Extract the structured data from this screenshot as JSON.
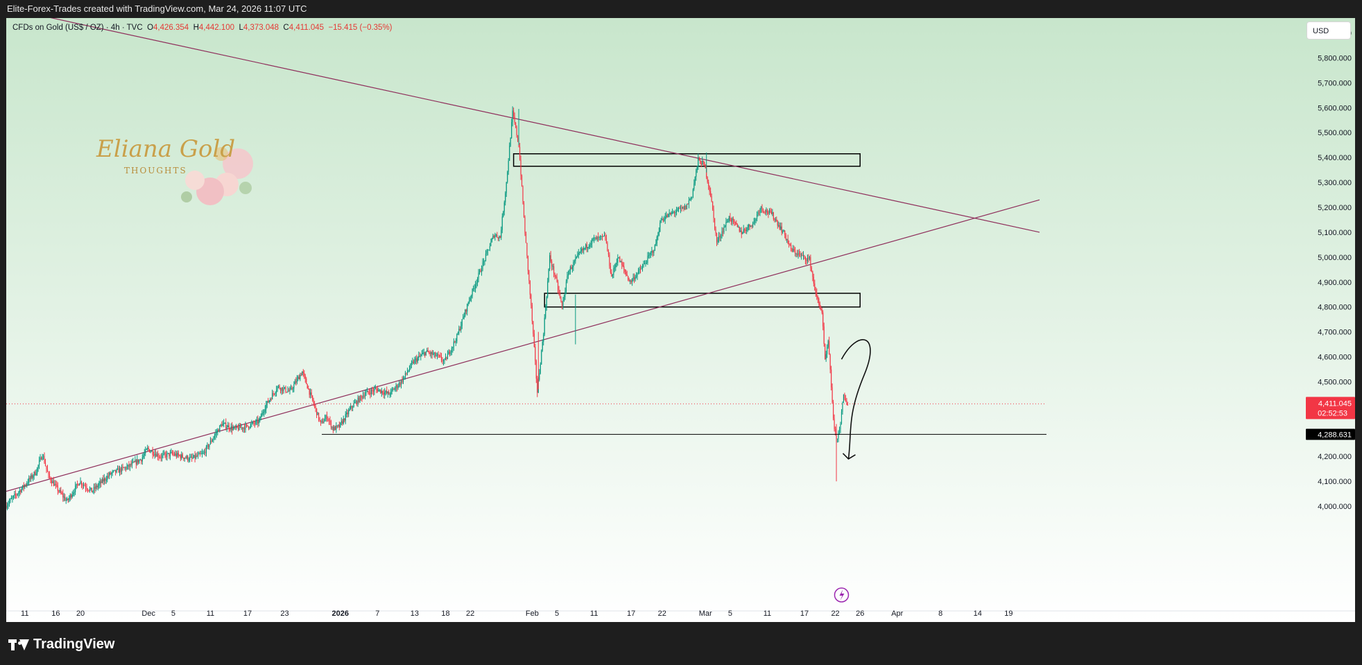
{
  "header": {
    "attribution": "Elite-Forex-Trades created with TradingView.com, Mar 24, 2026 11:07 UTC"
  },
  "legend": {
    "symbol": "CFDs on Gold (US$ / OZ) · 4h · TVC",
    "o_label": "O",
    "open": "4,426.354",
    "h_label": "H",
    "high": "4,442.100",
    "l_label": "L",
    "low": "4,373.048",
    "c_label": "C",
    "close": "4,411.045",
    "change": "−15.415 (−0.35%)"
  },
  "currency_button": "USD",
  "logo": {
    "text": "Eliana Gold",
    "subtext": "THOUGHTS",
    "icon": "rose-bouquet-icon"
  },
  "footer": {
    "brand": "TradingView",
    "icon": "tradingview-logo-icon"
  },
  "colors": {
    "up": "#089981",
    "down": "#f23645",
    "trendline": "#8e2d5a",
    "background_top": "#c8e6cc",
    "price_tag": "#f23645"
  },
  "chart_data": {
    "type": "candlestick",
    "timeframe": "4h",
    "y_tick_labels": [
      "4,000.000",
      "4,100.000",
      "4,200.000",
      "4,300.000",
      "4,400.000",
      "4,500.000",
      "4,600.000",
      "4,700.000",
      "4,800.000",
      "4,900.000",
      "5,000.000",
      "5,100.000",
      "5,200.000",
      "5,300.000",
      "5,400.000",
      "5,500.000",
      "5,600.000",
      "5,700.000",
      "5,800.000",
      "5,900.000"
    ],
    "y_ticks": [
      4000,
      4100,
      4200,
      4300,
      4400,
      4500,
      4600,
      4700,
      4800,
      4900,
      5000,
      5100,
      5200,
      5300,
      5400,
      5500,
      5600,
      5700,
      5800,
      5900
    ],
    "ylim": [
      3900,
      5960
    ],
    "x_tick_labels": [
      "11",
      "16",
      "20",
      "Dec",
      "5",
      "11",
      "17",
      "23",
      "2026",
      "7",
      "13",
      "18",
      "22",
      "Feb",
      "5",
      "11",
      "17",
      "22",
      "Mar",
      "5",
      "11",
      "17",
      "22",
      "26",
      "Apr",
      "8",
      "14",
      "19"
    ],
    "x_tick_dates": [
      "2025-11-11",
      "2025-11-16",
      "2025-11-20",
      "2025-12-01",
      "2025-12-05",
      "2025-12-11",
      "2025-12-17",
      "2025-12-23",
      "2026-01-01",
      "2026-01-07",
      "2026-01-13",
      "2026-01-18",
      "2026-01-22",
      "2026-02-01",
      "2026-02-05",
      "2026-02-11",
      "2026-02-17",
      "2026-02-22",
      "2026-03-01",
      "2026-03-05",
      "2026-03-11",
      "2026-03-17",
      "2026-03-22",
      "2026-03-26",
      "2026-04-01",
      "2026-04-08",
      "2026-04-14",
      "2026-04-19"
    ],
    "xlim": [
      "2025-11-08",
      "2026-04-24"
    ],
    "price_path": [
      [
        "2025-11-08",
        4000
      ],
      [
        "2025-11-11",
        4080
      ],
      [
        "2025-11-13",
        4140
      ],
      [
        "2025-11-14",
        4210
      ],
      [
        "2025-11-15",
        4120
      ],
      [
        "2025-11-17",
        4050
      ],
      [
        "2025-11-18",
        4020
      ],
      [
        "2025-11-20",
        4100
      ],
      [
        "2025-11-22",
        4060
      ],
      [
        "2025-11-25",
        4130
      ],
      [
        "2025-11-28",
        4160
      ],
      [
        "2025-11-30",
        4190
      ],
      [
        "2025-12-01",
        4230
      ],
      [
        "2025-12-03",
        4200
      ],
      [
        "2025-12-05",
        4210
      ],
      [
        "2025-12-08",
        4190
      ],
      [
        "2025-12-10",
        4210
      ],
      [
        "2025-12-12",
        4290
      ],
      [
        "2025-12-13",
        4330
      ],
      [
        "2025-12-15",
        4310
      ],
      [
        "2025-12-17",
        4320
      ],
      [
        "2025-12-19",
        4340
      ],
      [
        "2025-12-20",
        4400
      ],
      [
        "2025-12-22",
        4480
      ],
      [
        "2025-12-24",
        4460
      ],
      [
        "2025-12-26",
        4540
      ],
      [
        "2025-12-27",
        4470
      ],
      [
        "2025-12-29",
        4330
      ],
      [
        "2025-12-30",
        4360
      ],
      [
        "2025-12-31",
        4310
      ],
      [
        "2026-01-01",
        4320
      ],
      [
        "2026-01-03",
        4400
      ],
      [
        "2026-01-05",
        4450
      ],
      [
        "2026-01-07",
        4470
      ],
      [
        "2026-01-09",
        4450
      ],
      [
        "2026-01-11",
        4500
      ],
      [
        "2026-01-13",
        4580
      ],
      [
        "2026-01-15",
        4620
      ],
      [
        "2026-01-17",
        4600
      ],
      [
        "2026-01-18",
        4580
      ],
      [
        "2026-01-20",
        4680
      ],
      [
        "2026-01-22",
        4830
      ],
      [
        "2026-01-24",
        4960
      ],
      [
        "2026-01-26",
        5090
      ],
      [
        "2026-01-27",
        5080
      ],
      [
        "2026-01-28",
        5300
      ],
      [
        "2026-01-29",
        5580
      ],
      [
        "2026-01-30",
        5450
      ],
      [
        "2026-01-31",
        5100
      ],
      [
        "2026-02-01",
        4800
      ],
      [
        "2026-02-02",
        4460
      ],
      [
        "2026-02-03",
        4700
      ],
      [
        "2026-02-04",
        5000
      ],
      [
        "2026-02-05",
        4910
      ],
      [
        "2026-02-06",
        4800
      ],
      [
        "2026-02-07",
        4940
      ],
      [
        "2026-02-09",
        5020
      ],
      [
        "2026-02-11",
        5070
      ],
      [
        "2026-02-13",
        5080
      ],
      [
        "2026-02-14",
        4920
      ],
      [
        "2026-02-15",
        5000
      ],
      [
        "2026-02-17",
        4900
      ],
      [
        "2026-02-19",
        4960
      ],
      [
        "2026-02-21",
        5040
      ],
      [
        "2026-02-22",
        5150
      ],
      [
        "2026-02-24",
        5180
      ],
      [
        "2026-02-26",
        5200
      ],
      [
        "2026-02-27",
        5250
      ],
      [
        "2026-02-28",
        5390
      ],
      [
        "2026-03-01",
        5370
      ],
      [
        "2026-03-02",
        5250
      ],
      [
        "2026-03-03",
        5060
      ],
      [
        "2026-03-05",
        5160
      ],
      [
        "2026-03-07",
        5100
      ],
      [
        "2026-03-09",
        5140
      ],
      [
        "2026-03-10",
        5200
      ],
      [
        "2026-03-12",
        5170
      ],
      [
        "2026-03-14",
        5090
      ],
      [
        "2026-03-15",
        5030
      ],
      [
        "2026-03-17",
        5000
      ],
      [
        "2026-03-18",
        4990
      ],
      [
        "2026-03-19",
        4850
      ],
      [
        "2026-03-20",
        4780
      ],
      [
        "2026-03-20T12:00",
        4580
      ],
      [
        "2026-03-21",
        4660
      ],
      [
        "2026-03-22",
        4300
      ],
      [
        "2026-03-22T12:00",
        4270
      ],
      [
        "2026-03-23",
        4340
      ],
      [
        "2026-03-23T12:00",
        4440
      ],
      [
        "2026-03-24",
        4411
      ]
    ],
    "price_line_label": "4,411.045",
    "countdown": "02:52:53",
    "horizontal_line_label": "4,288.631",
    "horizontal_line": {
      "date_from": "2025-12-29",
      "price": 4288.631
    },
    "zones": [
      {
        "date_from": "2026-01-29",
        "date_to": "2026-03-26",
        "price_from": 5365,
        "price_to": 5415
      },
      {
        "date_from": "2026-02-03",
        "date_to": "2026-03-26",
        "price_from": 4800,
        "price_to": 4855
      }
    ],
    "trendlines": [
      {
        "from": [
          "2025-11-08",
          6000
        ],
        "to": [
          "2026-04-24",
          5100
        ]
      },
      {
        "from": [
          "2025-11-08",
          4060
        ],
        "to": [
          "2026-04-24",
          5230
        ]
      }
    ],
    "projection_arrow": {
      "start": [
        "2026-03-23",
        4590
      ],
      "peak": [
        "2026-03-25",
        4640
      ],
      "end": [
        "2026-03-23",
        4190
      ]
    },
    "grid": false
  }
}
